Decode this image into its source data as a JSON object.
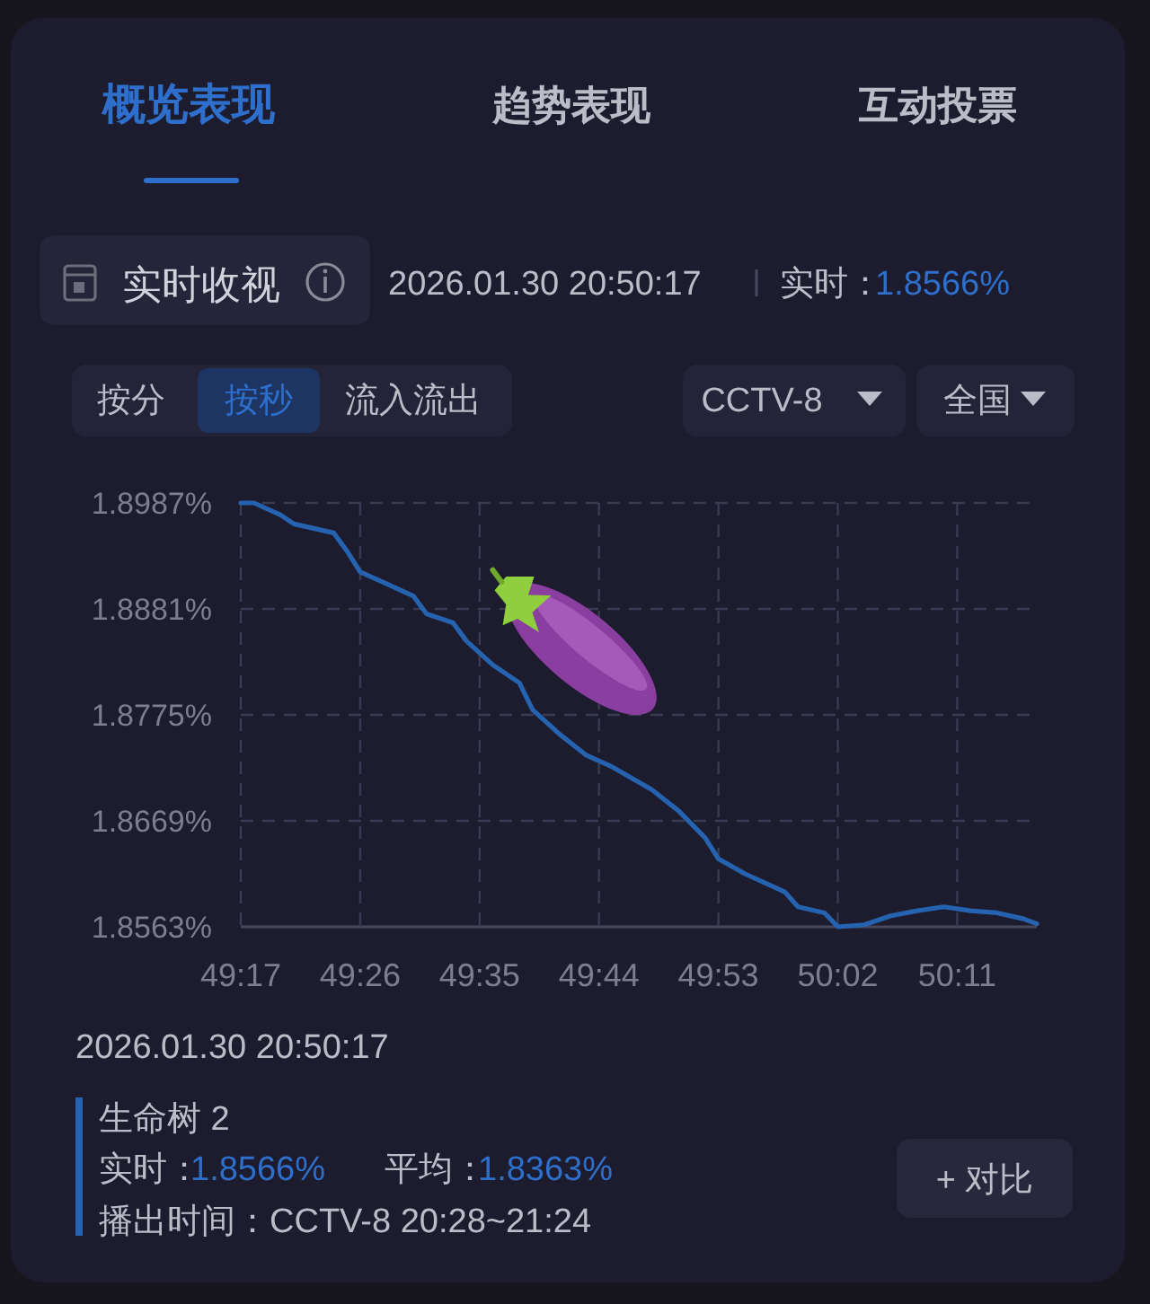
{
  "chart_data": {
    "type": "line",
    "title": "实时收视",
    "x": [
      2957,
      2958,
      2960,
      2961,
      2964,
      2965,
      2966,
      2968,
      2970,
      2971,
      2973,
      2974,
      2976,
      2978,
      2979,
      2981,
      2983,
      2985,
      2988,
      2990,
      2992,
      2993,
      2995,
      2997,
      2998,
      2999,
      3001,
      3002,
      3004,
      3006,
      3008,
      3010,
      3012,
      3014,
      3016,
      3017
    ],
    "series": [
      {
        "name": "生命树 2",
        "color": "#2563b0",
        "values": [
          1.8987,
          1.8987,
          1.8975,
          1.8966,
          1.8957,
          1.8939,
          1.8918,
          1.8906,
          1.8894,
          1.8876,
          1.8867,
          1.8849,
          1.8825,
          1.8807,
          1.878,
          1.8756,
          1.8735,
          1.8723,
          1.87,
          1.8679,
          1.8652,
          1.8631,
          1.8616,
          1.8604,
          1.8598,
          1.8583,
          1.8577,
          1.8563,
          1.8565,
          1.8574,
          1.8579,
          1.8583,
          1.8579,
          1.8577,
          1.8571,
          1.8566
        ]
      }
    ],
    "xlim": [
      2957,
      3017
    ],
    "xticks": [
      {
        "value": 2957,
        "label": "49:17"
      },
      {
        "value": 2966,
        "label": "49:26"
      },
      {
        "value": 2975,
        "label": "49:35"
      },
      {
        "value": 2984,
        "label": "49:44"
      },
      {
        "value": 2993,
        "label": "49:53"
      },
      {
        "value": 3002,
        "label": "50:02"
      },
      {
        "value": 3011,
        "label": "50:11"
      }
    ],
    "ylim": [
      1.8563,
      1.8987
    ],
    "yticks": [
      {
        "value": 1.8563,
        "label": "1.8563%"
      },
      {
        "value": 1.8669,
        "label": "1.8669%"
      },
      {
        "value": 1.8775,
        "label": "1.8775%"
      },
      {
        "value": 1.8881,
        "label": "1.8881%"
      },
      {
        "value": 1.8987,
        "label": "1.8987%"
      }
    ],
    "grid": true,
    "legend": "bottom",
    "line_style": "solid",
    "annotations": [
      "概览表现",
      "趋势表现",
      "互动投票",
      "2026.01.30 20:50:17",
      "实时：",
      "1.8566%",
      "按分",
      "按秒",
      "流入流出",
      "CCTV-8",
      "全国",
      "2026.01.30 20:50:17",
      "实时：",
      "1.8566%",
      "平均：",
      "1.8363%",
      "播出时间：CCTV-8 20:28~21:24",
      "+ 对比"
    ]
  }
}
